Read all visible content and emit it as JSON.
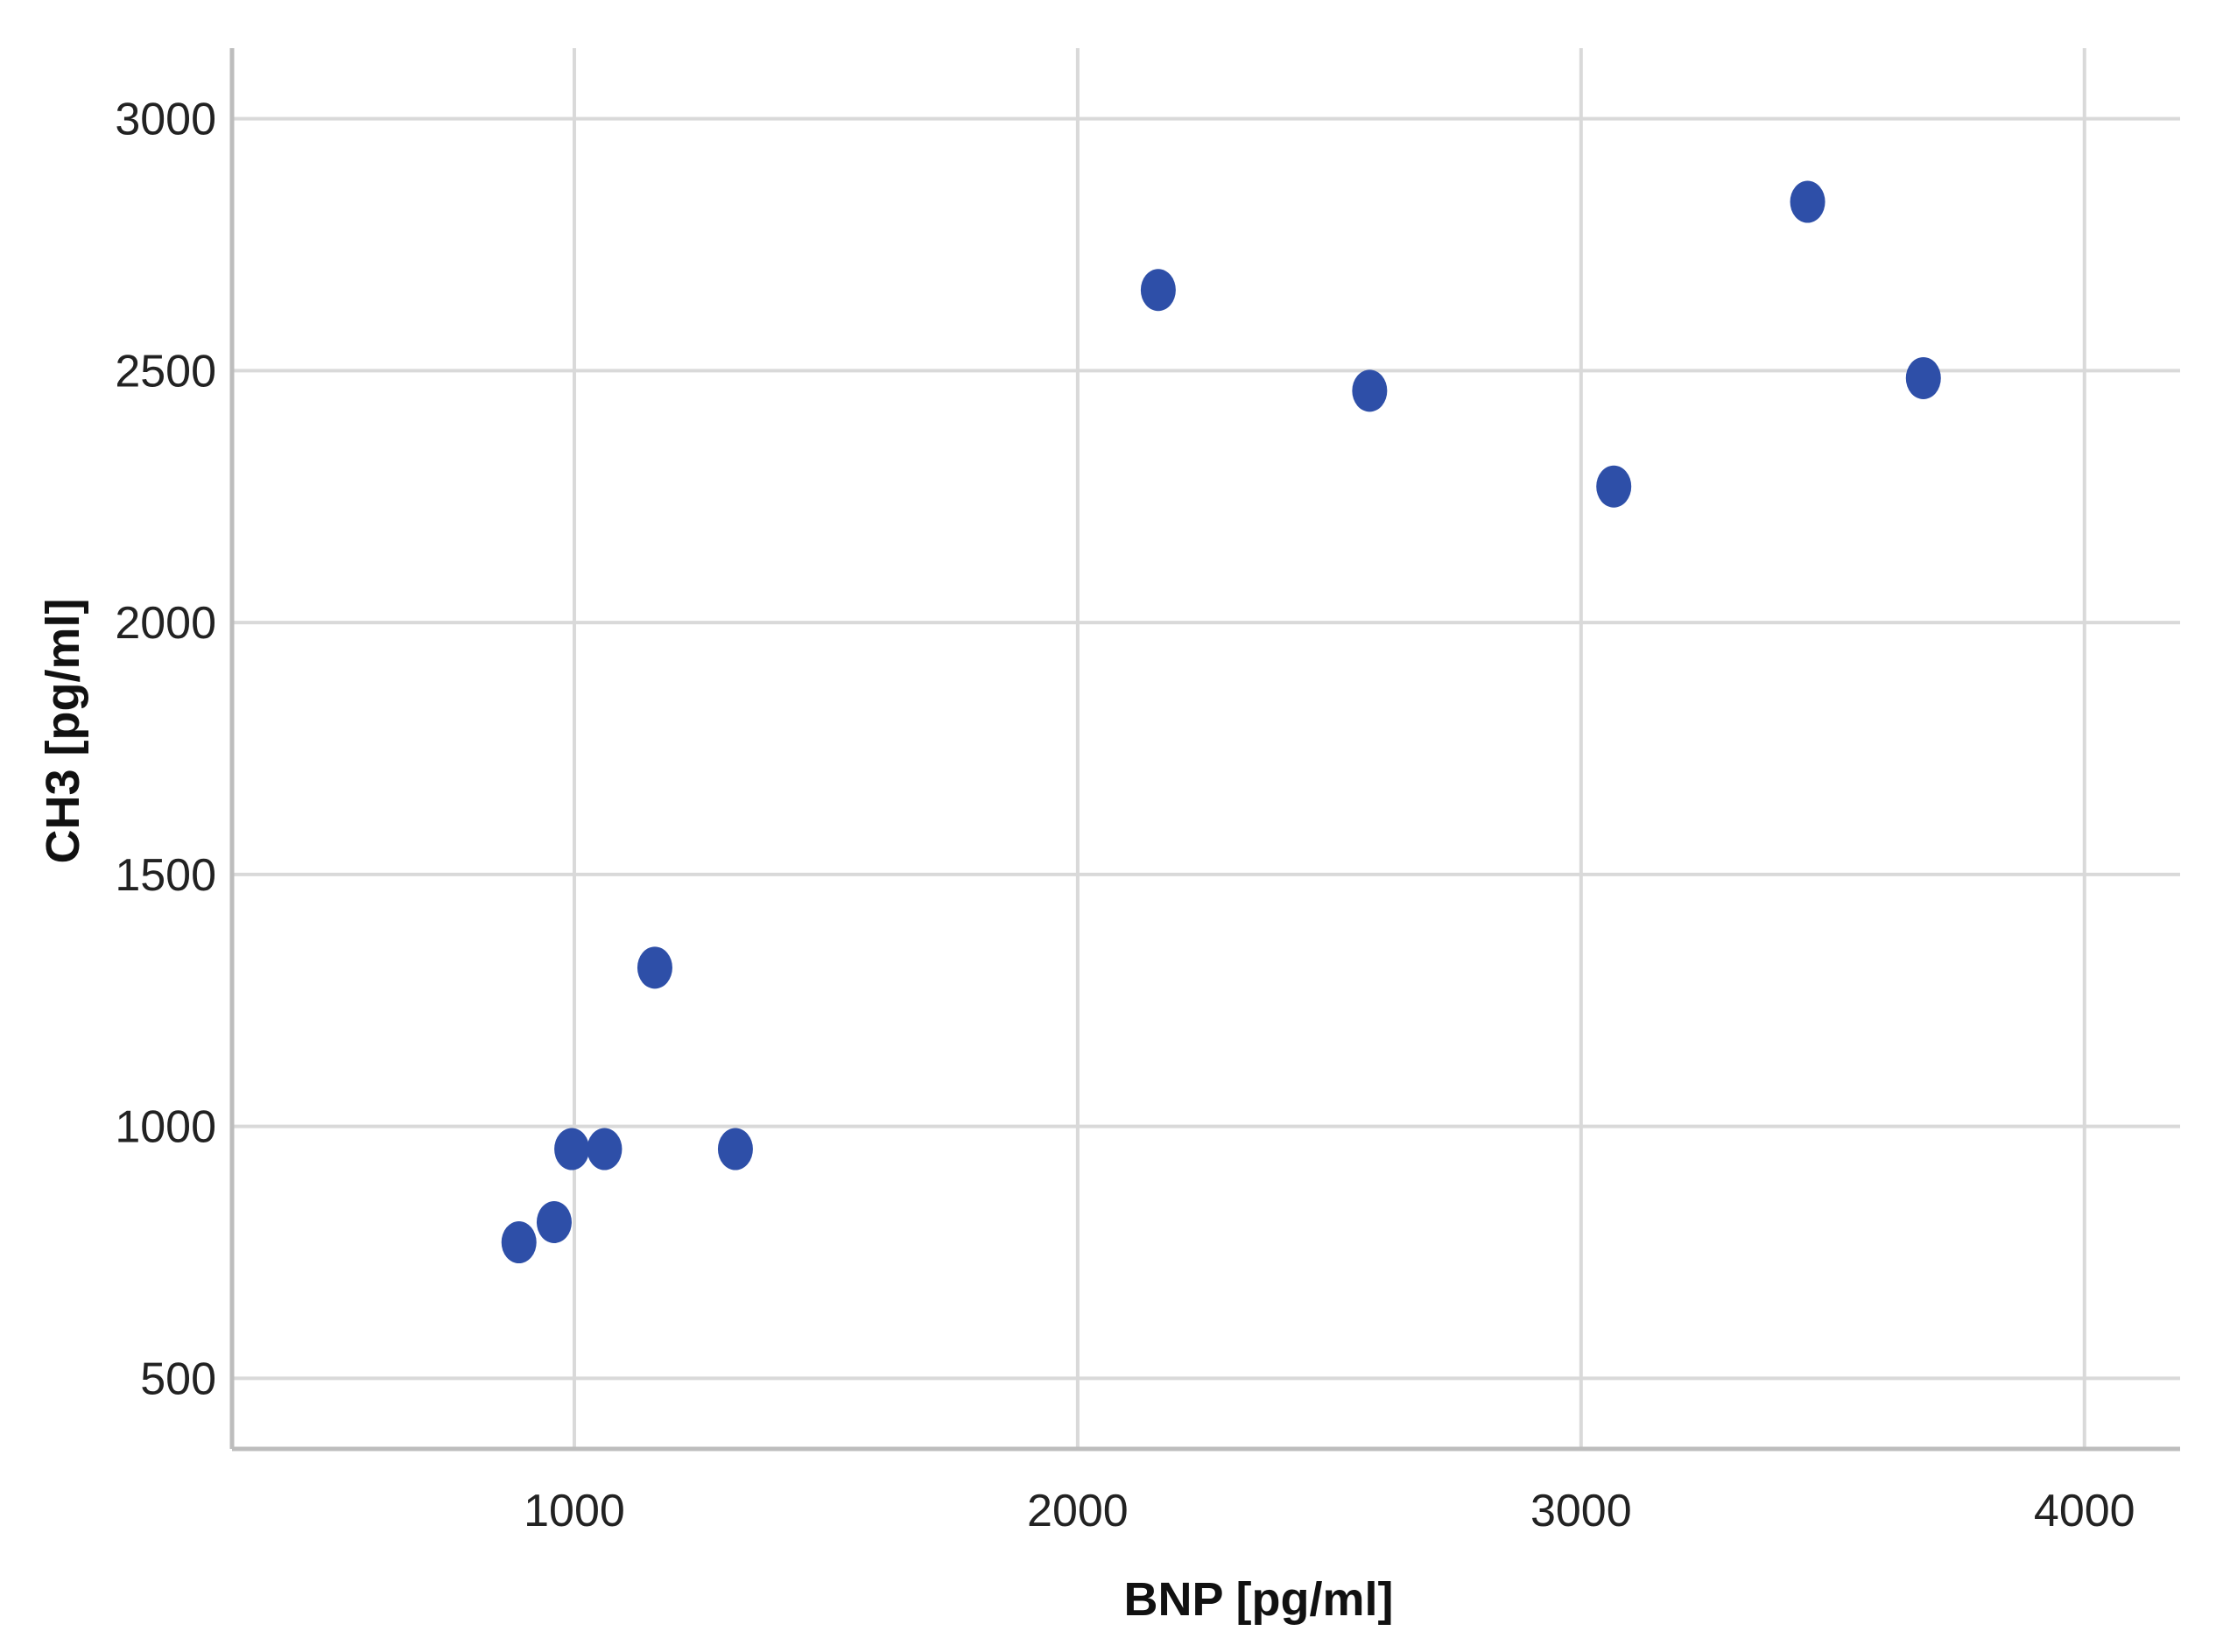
{
  "chart_data": {
    "type": "scatter",
    "title": "",
    "xlabel": "BNP [pg/ml]",
    "ylabel": "CH3 [pg/ml]",
    "xlim": [
      320,
      4190
    ],
    "ylim": [
      360,
      3140
    ],
    "x_ticks": [
      1000,
      2000,
      3000,
      4000
    ],
    "y_ticks": [
      500,
      1000,
      1500,
      2000,
      2500,
      3000
    ],
    "grid": true,
    "colors": {
      "marker": "#2E4FA8",
      "grid": "#D9D9D9",
      "axis": "#BDBDBD"
    },
    "points": [
      {
        "x": 890,
        "y": 770
      },
      {
        "x": 960,
        "y": 810
      },
      {
        "x": 995,
        "y": 955
      },
      {
        "x": 1060,
        "y": 955
      },
      {
        "x": 1160,
        "y": 1315
      },
      {
        "x": 1320,
        "y": 955
      },
      {
        "x": 2160,
        "y": 2660
      },
      {
        "x": 2580,
        "y": 2460
      },
      {
        "x": 3065,
        "y": 2270
      },
      {
        "x": 3450,
        "y": 2835
      },
      {
        "x": 3680,
        "y": 2485
      }
    ]
  }
}
